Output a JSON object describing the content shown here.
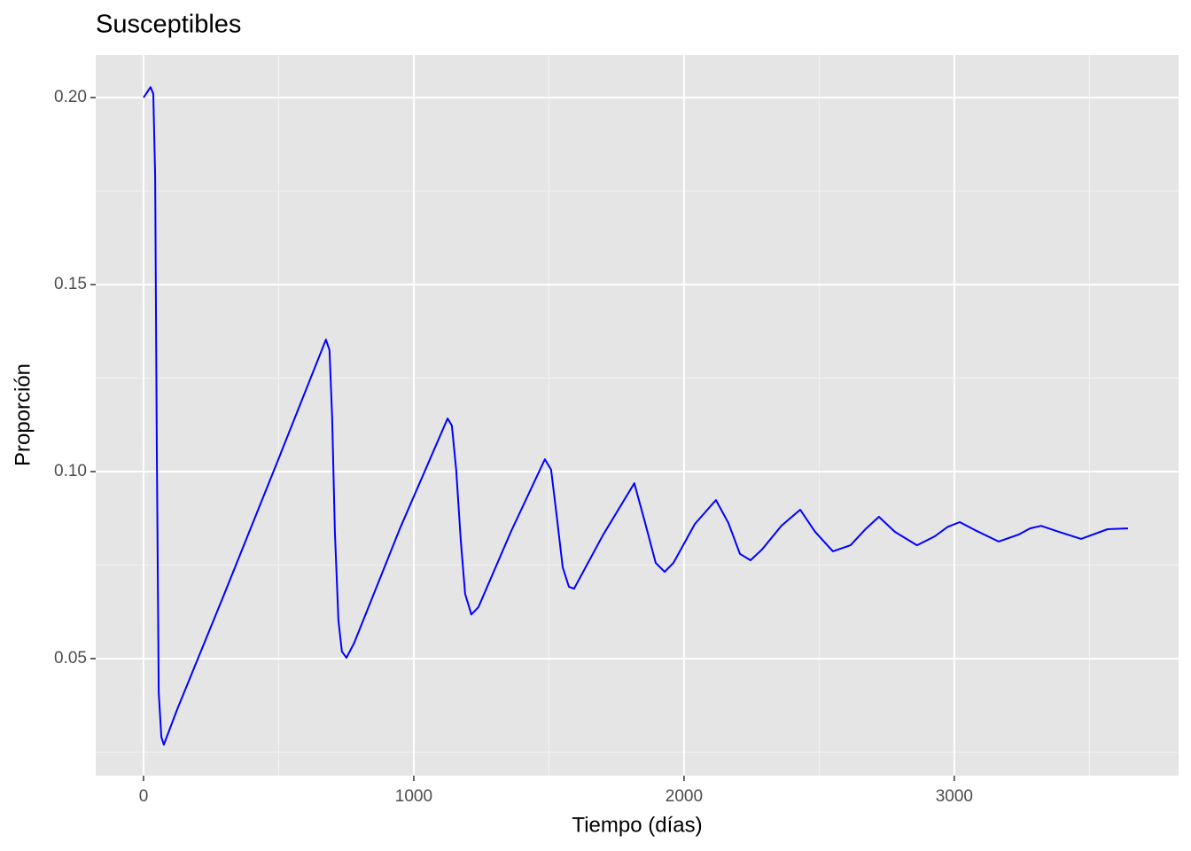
{
  "chart_data": {
    "type": "line",
    "title": "Susceptibles",
    "x_label": "Tiempo (días)",
    "y_label": "Proporción",
    "x": [
      0,
      26,
      36,
      43,
      49,
      56,
      66,
      75,
      125,
      300,
      500,
      675,
      688,
      698,
      708,
      721,
      734,
      751,
      780,
      950,
      1125,
      1141,
      1157,
      1174,
      1190,
      1213,
      1239,
      1360,
      1485,
      1508,
      1528,
      1551,
      1574,
      1593,
      1700,
      1816,
      1856,
      1895,
      1928,
      1961,
      2040,
      2118,
      2164,
      2207,
      2246,
      2289,
      2360,
      2430,
      2485,
      2551,
      2616,
      2670,
      2721,
      2780,
      2862,
      2928,
      2975,
      3020,
      3075,
      3164,
      3239,
      3280,
      3321,
      3387,
      3469,
      3567,
      3643
    ],
    "series": [
      {
        "name": "Susceptibles",
        "color": "#0000ff",
        "values": [
          0.2,
          0.2028,
          0.201,
          0.179,
          0.108,
          0.041,
          0.029,
          0.027,
          0.0365,
          0.0675,
          0.1035,
          0.1353,
          0.1325,
          0.1147,
          0.0839,
          0.0602,
          0.0519,
          0.0502,
          0.0543,
          0.085,
          0.1142,
          0.1123,
          0.1005,
          0.0815,
          0.0673,
          0.0618,
          0.0637,
          0.084,
          0.1033,
          0.1005,
          0.0886,
          0.0744,
          0.0692,
          0.0687,
          0.083,
          0.0969,
          0.0863,
          0.0756,
          0.0732,
          0.0756,
          0.086,
          0.0924,
          0.0863,
          0.078,
          0.0763,
          0.0792,
          0.0855,
          0.0898,
          0.0839,
          0.0787,
          0.0803,
          0.0845,
          0.0879,
          0.0839,
          0.0803,
          0.0827,
          0.0852,
          0.0865,
          0.0844,
          0.0813,
          0.0832,
          0.0848,
          0.0855,
          0.0839,
          0.082,
          0.0846,
          0.0848
        ]
      }
    ],
    "xlim": [
      -177,
      3830
    ],
    "ylim": [
      0.0187,
      0.2114
    ],
    "xticks": [
      0,
      1000,
      2000,
      3000
    ],
    "yticks": [
      {
        "value": 0.05,
        "label": "0.05"
      },
      {
        "value": 0.1,
        "label": "0.10"
      },
      {
        "value": 0.15,
        "label": "0.15"
      },
      {
        "value": 0.2,
        "label": "0.20"
      }
    ],
    "grid": true
  }
}
